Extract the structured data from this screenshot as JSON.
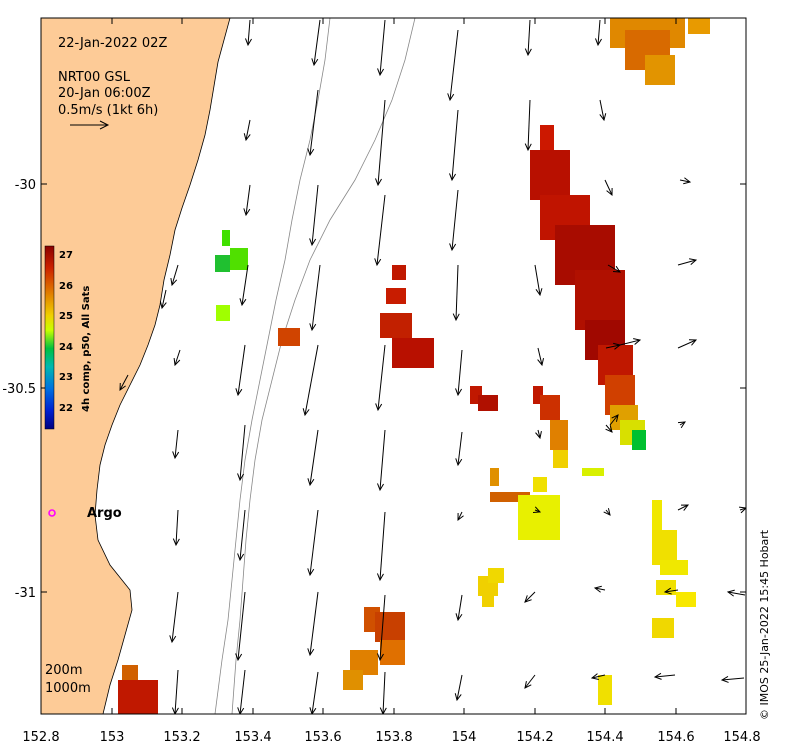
{
  "map": {
    "date_label": "22-Jan-2022 02Z",
    "current_source": "NRT00 GSL",
    "current_date": "20-Jan 06:00Z",
    "scale_label": "0.5m/s (1kt 6h)",
    "argo_label": "Argo",
    "isobath_200": "200m",
    "isobath_1000": "1000m",
    "credit": "© IMOS 25-Jan-2022 15:45 Hobart",
    "colors": {
      "land": "#fdcb97",
      "argo": "#ff00ff"
    }
  },
  "axes": {
    "x_ticks": [
      "152.8",
      "153",
      "153.2",
      "153.4",
      "153.6",
      "153.8",
      "154",
      "154.2",
      "154.4",
      "154.6",
      "154.8"
    ],
    "y_ticks": [
      "-30",
      "-30.5",
      "-31"
    ]
  },
  "colorbar": {
    "title": "4h comp, p50, All Sats",
    "ticks": [
      "27",
      "26",
      "25",
      "24",
      "23",
      "22"
    ]
  }
}
